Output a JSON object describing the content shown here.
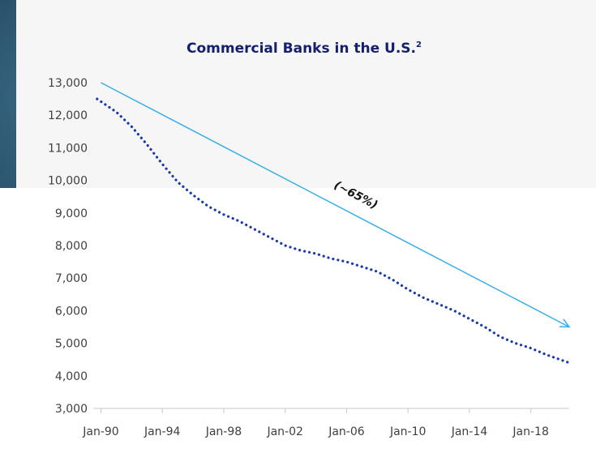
{
  "chart_data": {
    "type": "line",
    "title": "Commercial Banks in the U.S.",
    "title_superscript": "2",
    "xlabel": "",
    "ylabel": "",
    "x_ticks": [
      "Jan-90",
      "Jan-94",
      "Jan-98",
      "Jan-02",
      "Jan-06",
      "Jan-10",
      "Jan-14",
      "Jan-18"
    ],
    "x_tick_years": [
      1990,
      1994,
      1998,
      2002,
      2006,
      2010,
      2014,
      2018
    ],
    "xlim": [
      1989.5,
      2020.5
    ],
    "ylim": [
      3000,
      13000
    ],
    "y_ticks": [
      3000,
      4000,
      5000,
      6000,
      7000,
      8000,
      9000,
      10000,
      11000,
      12000,
      13000
    ],
    "y_tick_labels": [
      "3,000",
      "4,000",
      "5,000",
      "6,000",
      "7,000",
      "8,000",
      "9,000",
      "10,000",
      "11,000",
      "12,000",
      "13,000"
    ],
    "grid": false,
    "series": [
      {
        "line_style": "dotted",
        "color": "#1a3aa8",
        "x": [
          1989.75,
          1991,
          1992,
          1993,
          1994,
          1995,
          1996,
          1997,
          1998,
          1999,
          2000,
          2001,
          2002,
          2003,
          2004,
          2005,
          2006,
          2007,
          2008,
          2009,
          2010,
          2011,
          2012,
          2013,
          2014,
          2015,
          2016,
          2017,
          2018,
          2019,
          2020.5
        ],
        "y": [
          12500,
          12100,
          11650,
          11100,
          10500,
          9950,
          9550,
          9200,
          8950,
          8750,
          8500,
          8250,
          8000,
          7850,
          7750,
          7600,
          7500,
          7350,
          7200,
          6950,
          6650,
          6400,
          6200,
          6000,
          5750,
          5500,
          5200,
          5000,
          4850,
          4650,
          4400
        ]
      }
    ],
    "trend_arrow": {
      "color": "#3aaee8",
      "from": {
        "x": 1990,
        "y": 13000
      },
      "to": {
        "x": 2020.5,
        "y": 5500
      }
    },
    "annotation": {
      "text": "(~65%)",
      "x": 2006.5,
      "y": 9450
    }
  }
}
